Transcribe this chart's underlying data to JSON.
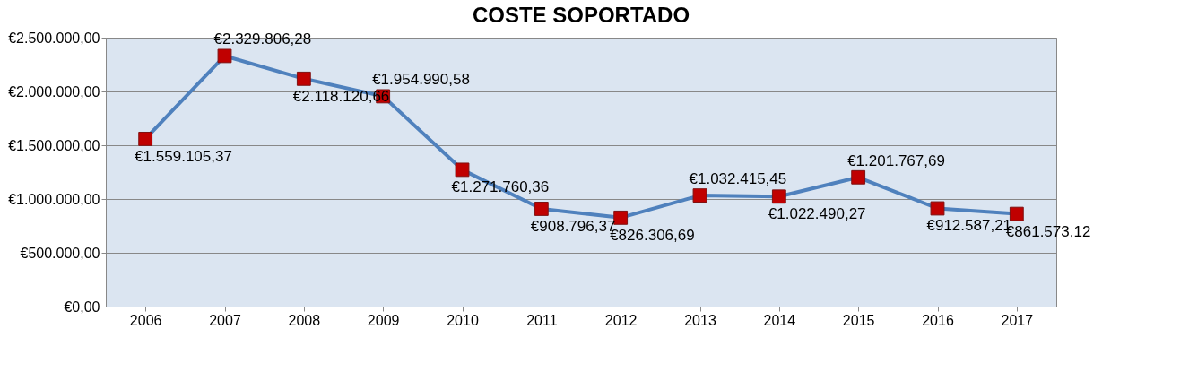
{
  "chart_data": {
    "type": "line",
    "title": "COSTE SOPORTADO",
    "categories": [
      "2006",
      "2007",
      "2008",
      "2009",
      "2010",
      "2011",
      "2012",
      "2013",
      "2014",
      "2015",
      "2016",
      "2017"
    ],
    "series": [
      {
        "color": "#4f81bd",
        "values": [
          1559105.37,
          2329806.28,
          2118120.66,
          1954990.58,
          1271760.36,
          908796.37,
          826306.69,
          1032415.45,
          1022490.27,
          1201767.69,
          912587.21,
          861573.12
        ],
        "value_labels": [
          "€1.559.105,37",
          "€2.329.806,28",
          "€2.118.120,66",
          "€1.954.990,58",
          "€1.271.760,36",
          "€908.796,37",
          "€826.306,69",
          "€1.032.415,45",
          "€1.022.490,27",
          "€1.201.767,69",
          "€912.587,21",
          "€861.573,12"
        ]
      }
    ],
    "ylim": [
      0,
      2500000
    ],
    "yticks": [
      {
        "value": 0,
        "label": "€0,00"
      },
      {
        "value": 500000,
        "label": "€500.000,00"
      },
      {
        "value": 1000000,
        "label": "€1.000.000,00"
      },
      {
        "value": 1500000,
        "label": "€1.500.000,00"
      },
      {
        "value": 2000000,
        "label": "€2.000.000,00"
      },
      {
        "value": 2500000,
        "label": "€2.500.000,00"
      }
    ],
    "grid": "y",
    "marker": "square",
    "line_style": "solid"
  }
}
